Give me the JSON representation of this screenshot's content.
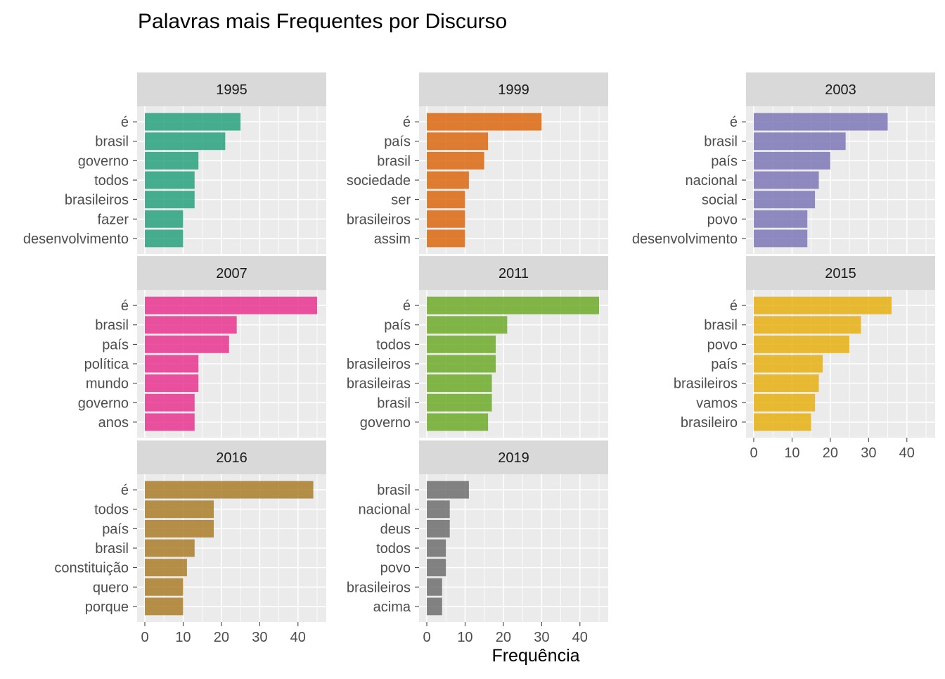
{
  "chart_data": {
    "type": "bar",
    "orientation": "horizontal",
    "title": "Palavras mais Frequentes por Discurso",
    "xlabel": "Frequência",
    "ylabel": "",
    "xlim": [
      0,
      47
    ],
    "x_ticks": [
      0,
      10,
      20,
      30,
      40
    ],
    "grid": true,
    "legend": "none",
    "panels": [
      {
        "label": "1995",
        "color": "#1B9E77",
        "categories": [
          "é",
          "brasil",
          "governo",
          "todos",
          "brasileiros",
          "fazer",
          "desenvolvimento"
        ],
        "values": [
          25,
          21,
          14,
          13,
          13,
          10,
          10
        ]
      },
      {
        "label": "1999",
        "color": "#D95F02",
        "categories": [
          "é",
          "país",
          "brasil",
          "sociedade",
          "ser",
          "brasileiros",
          "assim"
        ],
        "values": [
          30,
          16,
          15,
          11,
          10,
          10,
          10
        ]
      },
      {
        "label": "2003",
        "color": "#7570B3",
        "categories": [
          "é",
          "brasil",
          "país",
          "nacional",
          "social",
          "povo",
          "desenvolvimento"
        ],
        "values": [
          35,
          24,
          20,
          17,
          16,
          14,
          14
        ]
      },
      {
        "label": "2007",
        "color": "#E7298A",
        "categories": [
          "é",
          "brasil",
          "país",
          "política",
          "mundo",
          "governo",
          "anos"
        ],
        "values": [
          45,
          24,
          22,
          14,
          14,
          13,
          13
        ]
      },
      {
        "label": "2011",
        "color": "#66A61E",
        "categories": [
          "é",
          "país",
          "todos",
          "brasileiros",
          "brasileiras",
          "brasil",
          "governo"
        ],
        "values": [
          45,
          21,
          18,
          18,
          17,
          17,
          16
        ]
      },
      {
        "label": "2015",
        "color": "#E6AB02",
        "categories": [
          "é",
          "brasil",
          "povo",
          "país",
          "brasileiros",
          "vamos",
          "brasileiro"
        ],
        "values": [
          36,
          28,
          25,
          18,
          17,
          16,
          15
        ]
      },
      {
        "label": "2016",
        "color": "#A6761D",
        "categories": [
          "é",
          "todos",
          "país",
          "brasil",
          "constituição",
          "quero",
          "porque"
        ],
        "values": [
          44,
          18,
          18,
          13,
          11,
          10,
          10
        ]
      },
      {
        "label": "2019",
        "color": "#666666",
        "categories": [
          "brasil",
          "nacional",
          "deus",
          "todos",
          "povo",
          "brasileiros",
          "acima"
        ],
        "values": [
          11,
          6,
          6,
          5,
          5,
          4,
          4
        ]
      }
    ]
  }
}
